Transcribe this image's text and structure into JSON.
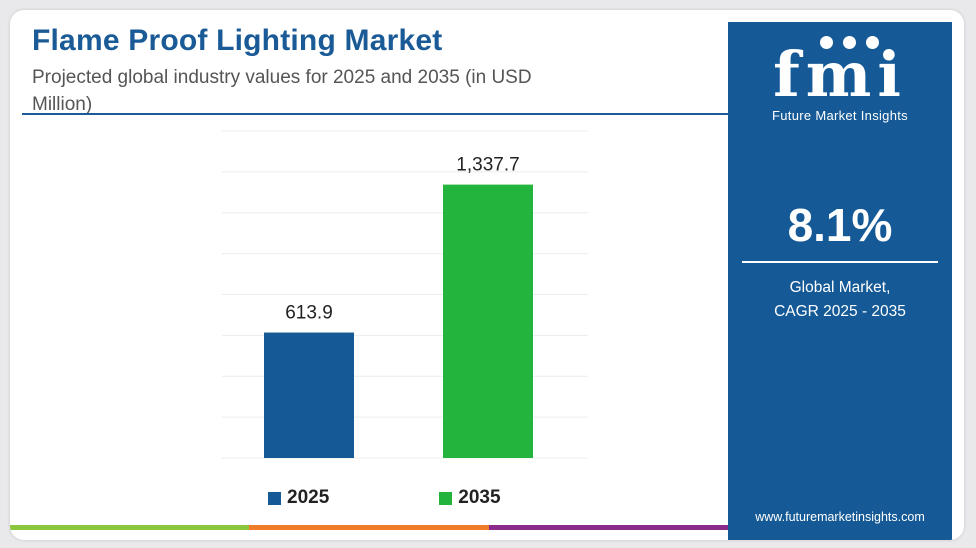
{
  "header": {
    "title": "Flame Proof Lighting Market",
    "subtitle": "Projected global industry values for 2025 and 2035 (in USD Million)"
  },
  "chart_data": {
    "type": "bar",
    "categories": [
      "2025",
      "2035"
    ],
    "values": [
      613.9,
      1337.7
    ],
    "value_labels": [
      "613.9",
      "1,337.7"
    ],
    "colors": [
      "#155a96",
      "#22b43c"
    ],
    "ylim": [
      0,
      1600
    ],
    "grid": true,
    "legend": "bottom",
    "xlabel": "",
    "ylabel": ""
  },
  "legend": {
    "items": [
      {
        "label": "2025",
        "color": "#155a96"
      },
      {
        "label": "2035",
        "color": "#22b43c"
      }
    ]
  },
  "panel": {
    "logo_text": "fmi",
    "logo_subtitle": "Future Market Insights",
    "cagr_value": "8.1%",
    "cagr_line1": "Global Market,",
    "cagr_line2": "CAGR 2025 - 2035",
    "website": "www.futuremarketinsights.com",
    "background_color": "#155a96"
  },
  "footer_strip_colors": [
    "#8cc63f",
    "#f07c2a",
    "#8a2b8c"
  ]
}
